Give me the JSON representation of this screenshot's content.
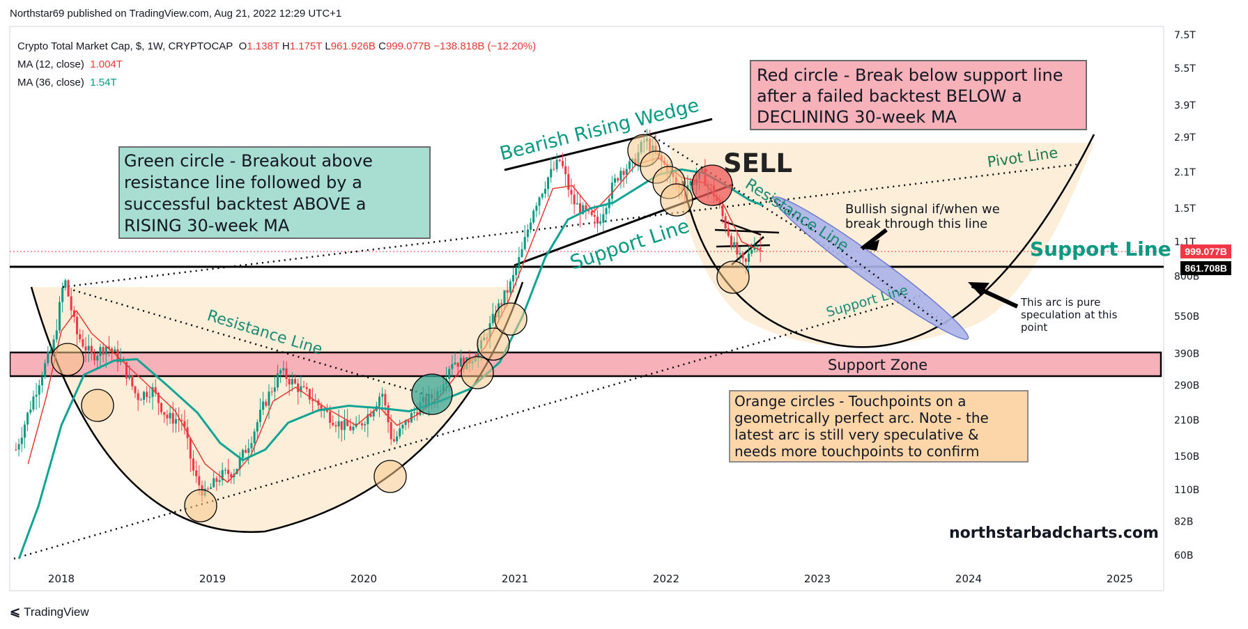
{
  "header": {
    "published": "Northstar69 published on TradingView.com, Aug 21, 2022 12:29 UTC+1"
  },
  "legend": {
    "symbol": "Crypto Total Market Cap, $, 1W, CRYPTOCAP",
    "o_label": "O",
    "o_value": "1.138T",
    "h_label": "H",
    "h_value": "1.175T",
    "l_label": "L",
    "l_value": "961.926B",
    "c_label": "C",
    "c_value": "999.077B",
    "change": "−138.818B (−12.20%)",
    "ma12_label": "MA (12, close)",
    "ma12_value": "1.004T",
    "ma36_label": "MA (36, close)",
    "ma36_value": "1.54T"
  },
  "annotations": {
    "green_box": "Green circle - Breakout above resistance line followed by a successful backtest ABOVE a RISING 30-week MA",
    "red_box": "Red circle - Break below support line after a failed backtest BELOW a DECLINING 30-week MA",
    "orange_box": "Orange circles - Touchpoints on a geometrically perfect arc. Note - the latest arc is still very speculative & needs more touchpoints to confirm",
    "wedge": "Bearish Rising Wedge",
    "sell": "SELL",
    "pivot": "Pivot Line",
    "resistance_left": "Resistance Line",
    "resistance_right": "Resistance Line",
    "support_wedge": "Support Line",
    "support_big": "Support Line",
    "support_small": "Support Line",
    "support_zone": "Support Zone",
    "bullish": "Bullish signal if/when we break through this line",
    "arc_note": "This arc is pure speculation at this point",
    "website": "northstarbadcharts.com"
  },
  "price_tags": {
    "current": "999.077B",
    "level": "861.708B"
  },
  "colors": {
    "up": "#089981",
    "down": "#f23645",
    "ma12": "#e53935",
    "ma36": "#0fa394",
    "arc_fill": "#fdebd3",
    "zone": "#f7b1b9",
    "touch": "#f8c98a"
  },
  "footer": {
    "brand": "TradingView"
  },
  "chart_data": {
    "type": "line",
    "title": "Crypto Total Market Cap, $, 1W, CRYPTOCAP",
    "y_scale": "log",
    "y_ticks": [
      "7.5T",
      "5.5T",
      "3.9T",
      "2.9T",
      "2.1T",
      "1.5T",
      "1.1T",
      "800B",
      "550B",
      "390B",
      "290B",
      "210B",
      "150B",
      "110B",
      "82B",
      "60B"
    ],
    "x_ticks": [
      "2018",
      "2019",
      "2020",
      "2021",
      "2022",
      "2023",
      "2024",
      "2025"
    ],
    "series": [
      {
        "name": "Crypto Total Market Cap",
        "points": [
          [
            2017.7,
            160
          ],
          [
            2017.85,
            300
          ],
          [
            2017.95,
            430
          ],
          [
            2018.02,
            790
          ],
          [
            2018.1,
            470
          ],
          [
            2018.2,
            380
          ],
          [
            2018.3,
            420
          ],
          [
            2018.4,
            360
          ],
          [
            2018.5,
            260
          ],
          [
            2018.6,
            280
          ],
          [
            2018.7,
            215
          ],
          [
            2018.8,
            210
          ],
          [
            2018.88,
            125
          ],
          [
            2018.95,
            105
          ],
          [
            2019.05,
            125
          ],
          [
            2019.15,
            132
          ],
          [
            2019.25,
            175
          ],
          [
            2019.35,
            250
          ],
          [
            2019.45,
            330
          ],
          [
            2019.55,
            290
          ],
          [
            2019.65,
            260
          ],
          [
            2019.75,
            225
          ],
          [
            2019.85,
            200
          ],
          [
            2019.95,
            193
          ],
          [
            2020.05,
            230
          ],
          [
            2020.12,
            275
          ],
          [
            2020.19,
            170
          ],
          [
            2020.28,
            205
          ],
          [
            2020.38,
            245
          ],
          [
            2020.48,
            265
          ],
          [
            2020.58,
            365
          ],
          [
            2020.68,
            355
          ],
          [
            2020.78,
            420
          ],
          [
            2020.88,
            580
          ],
          [
            2020.98,
            760
          ],
          [
            2021.05,
            1020
          ],
          [
            2021.12,
            1500
          ],
          [
            2021.22,
            2000
          ],
          [
            2021.3,
            2350
          ],
          [
            2021.38,
            1600
          ],
          [
            2021.48,
            1400
          ],
          [
            2021.55,
            1300
          ],
          [
            2021.62,
            1700
          ],
          [
            2021.7,
            2150
          ],
          [
            2021.78,
            2250
          ],
          [
            2021.86,
            2850
          ],
          [
            2021.93,
            2450
          ],
          [
            2022.0,
            2200
          ],
          [
            2022.08,
            1800
          ],
          [
            2022.16,
            1900
          ],
          [
            2022.24,
            2050
          ],
          [
            2022.32,
            1700
          ],
          [
            2022.4,
            1250
          ],
          [
            2022.46,
            1000
          ],
          [
            2022.52,
            870
          ],
          [
            2022.58,
            1100
          ],
          [
            2022.64,
            999
          ]
        ]
      },
      {
        "name": "MA (12, close)",
        "points": [
          [
            2017.78,
            140
          ],
          [
            2017.9,
            260
          ],
          [
            2018.0,
            480
          ],
          [
            2018.1,
            580
          ],
          [
            2018.2,
            470
          ],
          [
            2018.35,
            390
          ],
          [
            2018.55,
            300
          ],
          [
            2018.75,
            230
          ],
          [
            2018.95,
            140
          ],
          [
            2019.1,
            118
          ],
          [
            2019.25,
            150
          ],
          [
            2019.4,
            250
          ],
          [
            2019.55,
            285
          ],
          [
            2019.75,
            235
          ],
          [
            2019.95,
            200
          ],
          [
            2020.1,
            238
          ],
          [
            2020.22,
            200
          ],
          [
            2020.35,
            220
          ],
          [
            2020.5,
            260
          ],
          [
            2020.65,
            340
          ],
          [
            2020.8,
            410
          ],
          [
            2020.95,
            620
          ],
          [
            2021.1,
            1050
          ],
          [
            2021.25,
            1800
          ],
          [
            2021.38,
            1850
          ],
          [
            2021.52,
            1450
          ],
          [
            2021.65,
            1750
          ],
          [
            2021.8,
            2250
          ],
          [
            2021.95,
            2400
          ],
          [
            2022.1,
            2000
          ],
          [
            2022.25,
            1900
          ],
          [
            2022.38,
            1550
          ],
          [
            2022.5,
            1100
          ],
          [
            2022.64,
            1004
          ]
        ]
      },
      {
        "name": "MA (36, close)",
        "points": [
          [
            2017.72,
            58
          ],
          [
            2017.85,
            95
          ],
          [
            2018.0,
            200
          ],
          [
            2018.15,
            320
          ],
          [
            2018.35,
            365
          ],
          [
            2018.5,
            370
          ],
          [
            2018.7,
            290
          ],
          [
            2018.9,
            225
          ],
          [
            2019.05,
            170
          ],
          [
            2019.2,
            145
          ],
          [
            2019.35,
            160
          ],
          [
            2019.5,
            205
          ],
          [
            2019.7,
            230
          ],
          [
            2019.9,
            240
          ],
          [
            2020.1,
            235
          ],
          [
            2020.3,
            228
          ],
          [
            2020.5,
            250
          ],
          [
            2020.7,
            280
          ],
          [
            2020.9,
            360
          ],
          [
            2021.05,
            550
          ],
          [
            2021.2,
            950
          ],
          [
            2021.35,
            1350
          ],
          [
            2021.5,
            1500
          ],
          [
            2021.65,
            1580
          ],
          [
            2021.8,
            1800
          ],
          [
            2021.95,
            2050
          ],
          [
            2022.1,
            2150
          ],
          [
            2022.25,
            2080
          ],
          [
            2022.4,
            1850
          ],
          [
            2022.55,
            1620
          ],
          [
            2022.64,
            1540
          ]
        ]
      }
    ]
  }
}
